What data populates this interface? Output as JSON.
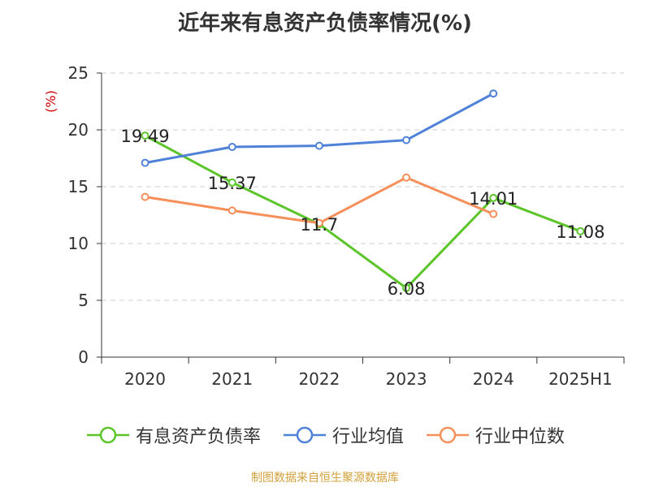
{
  "chart_data": {
    "type": "line",
    "title": "近年来有息资产负债率情况(%)",
    "ylabel": "(%)",
    "categories": [
      "2020",
      "2021",
      "2022",
      "2023",
      "2024",
      "2025H1"
    ],
    "ylim": [
      0,
      25
    ],
    "yticks": [
      "0",
      "5",
      "10",
      "15",
      "20",
      "25"
    ],
    "grid": true,
    "legend_position": "bottom",
    "series": [
      {
        "name": "有息资产负债率",
        "color": "#5bc52a",
        "values": [
          19.49,
          15.37,
          11.7,
          6.08,
          14.01,
          11.08
        ],
        "labels": [
          "19.49",
          "15.37",
          "11.7",
          "6.08",
          "14.01",
          "11.08"
        ]
      },
      {
        "name": "行业均值",
        "color": "#4f81d8",
        "values": [
          17.1,
          18.5,
          18.6,
          19.1,
          23.2,
          null
        ]
      },
      {
        "name": "行业中位数",
        "color": "#f68f5a",
        "values": [
          14.1,
          12.9,
          11.8,
          15.8,
          12.6,
          null
        ]
      }
    ]
  },
  "source_note": "制图数据来自恒生聚源数据库"
}
